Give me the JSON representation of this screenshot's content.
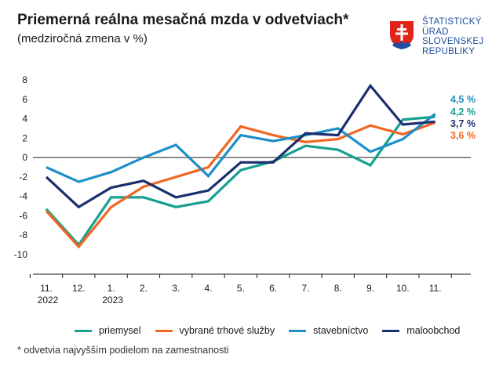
{
  "header": {
    "title": "Priemerná reálna mesačná mzda v odvetviach*",
    "subtitle": "(medziročná zmena v %)"
  },
  "logo": {
    "lines": [
      "ŠTATISTICKÝ",
      "ÚRAD",
      "SLOVENSKEJ",
      "REPUBLIKY"
    ]
  },
  "footnote": "* odvetvia najvyšším podielom na zamestnanosti",
  "chart_data": {
    "type": "line",
    "title": "Priemerná reálna mesačná mzda v odvetviach*",
    "subtitle": "(medziročná zmena v %)",
    "x": [
      "11.",
      "12.",
      "1.",
      "2.",
      "3.",
      "4.",
      "5.",
      "6.",
      "7.",
      "8.",
      "9.",
      "10.",
      "11."
    ],
    "x_sublabels": [
      {
        "index": 0,
        "text": "2022"
      },
      {
        "index": 2,
        "text": "2023"
      }
    ],
    "ylim": [
      -10,
      8
    ],
    "yticks": [
      8,
      6,
      4,
      2,
      0,
      -2,
      -4,
      -6,
      -8,
      -10
    ],
    "grid": false,
    "legend_position": "bottom",
    "series": [
      {
        "name": "priemysel",
        "color": "#16a08f",
        "values": [
          -5.3,
          -9.0,
          -4.1,
          -4.1,
          -5.1,
          -4.5,
          -1.3,
          -0.4,
          1.2,
          0.8,
          -0.8,
          3.9,
          4.2
        ],
        "end_label": "4,2 %"
      },
      {
        "name": "vybrané trhové služby",
        "color": "#f26522",
        "values": [
          -5.5,
          -9.2,
          -5.1,
          -3.0,
          -2.0,
          -1.0,
          3.2,
          2.3,
          1.6,
          1.9,
          3.3,
          2.4,
          3.6
        ],
        "end_label": "3,6 %"
      },
      {
        "name": "stavebníctvo",
        "color": "#1d8fc9",
        "values": [
          -1.0,
          -2.5,
          -1.5,
          0.0,
          1.3,
          -1.9,
          2.3,
          1.7,
          2.3,
          3.0,
          0.6,
          1.9,
          4.5
        ],
        "end_label": "4,5 %"
      },
      {
        "name": "maloobchod",
        "color": "#1b2f6e",
        "values": [
          -2.0,
          -5.1,
          -3.1,
          -2.4,
          -4.1,
          -3.4,
          -0.5,
          -0.5,
          2.5,
          2.3,
          7.4,
          3.4,
          3.7
        ],
        "end_label": "3,7 %"
      }
    ]
  }
}
